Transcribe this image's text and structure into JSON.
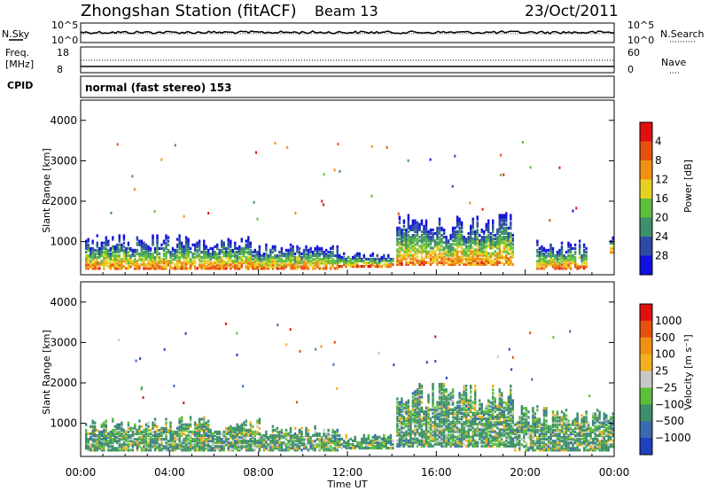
{
  "header": {
    "station": "Zhongshan Station (fitACF)",
    "beam": "Beam 13",
    "date": "23/Oct/2011"
  },
  "top_panels": {
    "nsky_label": "N.Sky",
    "nsky_ticks": [
      "10^5",
      "10^0"
    ],
    "nsearch_label": "N.Search",
    "nsearch_ticks": [
      "10^5",
      "10^0"
    ],
    "freq_label": "Freq.",
    "freq_unit": "[MHz]",
    "freq_ticks": [
      "18",
      "8"
    ],
    "nave_label": "Nave",
    "nave_ticks": [
      "60",
      "0"
    ],
    "cpid_label": "CPID",
    "cpid_text": "normal (fast stereo) 153"
  },
  "chart_data": [
    {
      "type": "heatmap",
      "name": "power",
      "ylabel": "Slant Range [km]",
      "xlabel": "",
      "x_ticks": [
        "00:00",
        "04:00",
        "08:00",
        "12:00",
        "16:00",
        "20:00",
        "00:00"
      ],
      "x_range_hours": [
        0,
        24
      ],
      "y_ticks": [
        1000,
        2000,
        3000,
        4000
      ],
      "ylim": [
        180,
        4500
      ],
      "colorbar_label": "Power [dB]",
      "colorbar_ticks": [
        4,
        8,
        12,
        16,
        20,
        24,
        28
      ],
      "colorbar_colors": [
        "#1010e0",
        "#2c4aa6",
        "#3f8f6a",
        "#5bbf3a",
        "#e8d020",
        "#f09010",
        "#e85010",
        "#e01010"
      ],
      "echo_regions": [
        {
          "t_start": 0.2,
          "t_end": 5.5,
          "r_low": 300,
          "r_high": 1150
        },
        {
          "t_start": 5.5,
          "t_end": 8.0,
          "r_low": 300,
          "r_high": 1100
        },
        {
          "t_start": 8.0,
          "t_end": 11.5,
          "r_low": 300,
          "r_high": 900
        },
        {
          "t_start": 11.5,
          "t_end": 14.0,
          "r_low": 350,
          "r_high": 700
        },
        {
          "t_start": 14.2,
          "t_end": 19.5,
          "r_low": 400,
          "r_high": 1700
        },
        {
          "t_start": 20.5,
          "t_end": 22.8,
          "r_low": 300,
          "r_high": 1000
        },
        {
          "t_start": 23.8,
          "t_end": 24.0,
          "r_low": 700,
          "r_high": 1100
        }
      ]
    },
    {
      "type": "heatmap",
      "name": "velocity",
      "ylabel": "Slant Range [km]",
      "xlabel": "Time UT",
      "x_ticks": [
        "00:00",
        "04:00",
        "08:00",
        "12:00",
        "16:00",
        "20:00",
        "00:00"
      ],
      "x_range_hours": [
        0,
        24
      ],
      "y_ticks": [
        1000,
        2000,
        3000,
        4000
      ],
      "ylim": [
        180,
        4500
      ],
      "colorbar_label": "Velocity [m s⁻¹]",
      "colorbar_ticks": [
        "1000",
        "500",
        "100",
        "25",
        "−25",
        "−100",
        "−500",
        "−1000"
      ],
      "colorbar_colors": [
        "#2040c0",
        "#3a6ab0",
        "#3f8f6a",
        "#5bbf3a",
        "#c8c8c8",
        "#f0b020",
        "#f09010",
        "#e85010",
        "#e01010"
      ],
      "echo_regions": [
        {
          "t_start": 0.2,
          "t_end": 5.5,
          "r_low": 300,
          "r_high": 1150
        },
        {
          "t_start": 5.5,
          "t_end": 8.0,
          "r_low": 300,
          "r_high": 1100
        },
        {
          "t_start": 8.0,
          "t_end": 11.5,
          "r_low": 300,
          "r_high": 900
        },
        {
          "t_start": 11.5,
          "t_end": 14.0,
          "r_low": 350,
          "r_high": 700
        },
        {
          "t_start": 14.2,
          "t_end": 19.5,
          "r_low": 400,
          "r_high": 2000
        },
        {
          "t_start": 19.5,
          "t_end": 24.0,
          "r_low": 300,
          "r_high": 1400
        }
      ]
    }
  ]
}
